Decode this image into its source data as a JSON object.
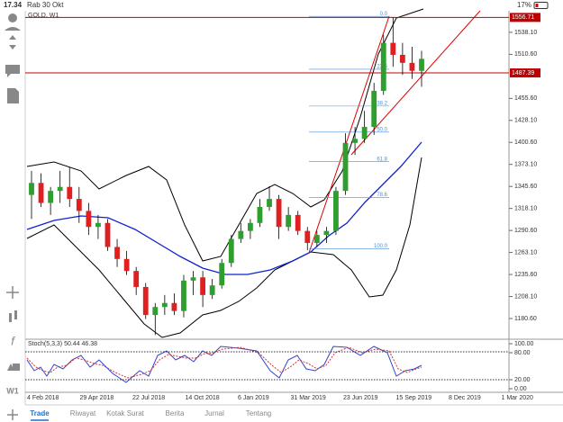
{
  "status_bar": {
    "time": "17.34",
    "date": "Rab 30 Okt",
    "battery": "17%"
  },
  "toolbar": {
    "timeframe": "W1"
  },
  "chart_data": {
    "type": "candlestick",
    "title": "GOLD, W1",
    "open": [
      1335,
      1350,
      1325,
      1340,
      1345,
      1330,
      1315,
      1295,
      1300,
      1270,
      1255,
      1240,
      1220,
      1185,
      1195,
      1200,
      1190,
      1228,
      1232,
      1210,
      1222,
      1250,
      1280,
      1290,
      1300,
      1320,
      1330,
      1295,
      1310,
      1290,
      1275,
      1285,
      1290,
      1340,
      1400,
      1405,
      1420,
      1465,
      1525,
      1510,
      1500,
      1490
    ],
    "high": [
      1365,
      1362,
      1345,
      1365,
      1370,
      1345,
      1325,
      1310,
      1305,
      1280,
      1265,
      1245,
      1225,
      1200,
      1210,
      1212,
      1235,
      1240,
      1240,
      1230,
      1255,
      1285,
      1300,
      1305,
      1330,
      1346,
      1335,
      1320,
      1315,
      1295,
      1290,
      1295,
      1345,
      1412,
      1420,
      1440,
      1475,
      1535,
      1557,
      1525,
      1520,
      1515
    ],
    "low": [
      1305,
      1320,
      1310,
      1325,
      1320,
      1300,
      1285,
      1280,
      1265,
      1245,
      1235,
      1210,
      1180,
      1160,
      1185,
      1185,
      1182,
      1210,
      1195,
      1205,
      1218,
      1245,
      1275,
      1280,
      1295,
      1315,
      1280,
      1290,
      1285,
      1266,
      1270,
      1275,
      1285,
      1335,
      1385,
      1400,
      1410,
      1460,
      1495,
      1485,
      1480,
      1470
    ],
    "close": [
      1350,
      1325,
      1340,
      1345,
      1330,
      1315,
      1295,
      1300,
      1270,
      1255,
      1240,
      1220,
      1185,
      1195,
      1200,
      1190,
      1228,
      1232,
      1210,
      1222,
      1250,
      1280,
      1290,
      1300,
      1320,
      1330,
      1295,
      1310,
      1290,
      1275,
      1285,
      1290,
      1340,
      1400,
      1405,
      1420,
      1465,
      1525,
      1510,
      1500,
      1490,
      1505
    ],
    "up_color": "#2e9e2e",
    "down_color": "#e02020",
    "ylim": [
      1157,
      1565
    ],
    "yticks": [
      {
        "value": 1538.1,
        "label": "1538.10"
      },
      {
        "value": 1510.6,
        "label": "1510.60"
      },
      {
        "value": 1455.6,
        "label": "1455.60"
      },
      {
        "value": 1428.1,
        "label": "1428.10"
      },
      {
        "value": 1400.6,
        "label": "1400.60"
      },
      {
        "value": 1373.1,
        "label": "1373.10"
      },
      {
        "value": 1345.6,
        "label": "1345.60"
      },
      {
        "value": 1318.1,
        "label": "1318.10"
      },
      {
        "value": 1290.6,
        "label": "1290.60"
      },
      {
        "value": 1263.1,
        "label": "1263.10"
      },
      {
        "value": 1235.6,
        "label": "1235.60"
      },
      {
        "value": 1208.1,
        "label": "1208.10"
      },
      {
        "value": 1180.6,
        "label": "1180.60"
      }
    ],
    "price_lines": [
      {
        "value": 1556.71,
        "label": "1556.71"
      },
      {
        "value": 1487.39,
        "label": "1487.39"
      }
    ],
    "fib_levels": [
      {
        "value": 1558,
        "label": "0.0"
      },
      {
        "value": 1492,
        "label": "23.6"
      },
      {
        "value": 1446,
        "label": "38.2"
      },
      {
        "value": 1413.5,
        "label": "50.0"
      },
      {
        "value": 1376.5,
        "label": "61.8"
      },
      {
        "value": 1331.6,
        "label": "78.6"
      },
      {
        "value": 1267.6,
        "label": "100.0"
      }
    ],
    "xticks": [
      "4 Feb 2018",
      "29 Apr 2018",
      "22 Jul 2018",
      "14 Oct 2018",
      "6 Jan 2019",
      "31 Mar 2019",
      "23 Jun 2019",
      "15 Sep 2019",
      "8 Dec 2019",
      "1 Mar 2020"
    ],
    "stoch": {
      "label": "Stoch(5,3,3) 50.44 46.38",
      "ylim": [
        0,
        100
      ],
      "yticks": [
        {
          "value": 100,
          "label": "100.00"
        },
        {
          "value": 80,
          "label": "80.00"
        },
        {
          "value": 20,
          "label": "20.00"
        },
        {
          "value": 0,
          "label": "0.00"
        }
      ]
    }
  },
  "tabs": [
    "Trade",
    "Riwayat",
    "Kotak Surat",
    "Berita",
    "Jurnal",
    "Tentang"
  ]
}
